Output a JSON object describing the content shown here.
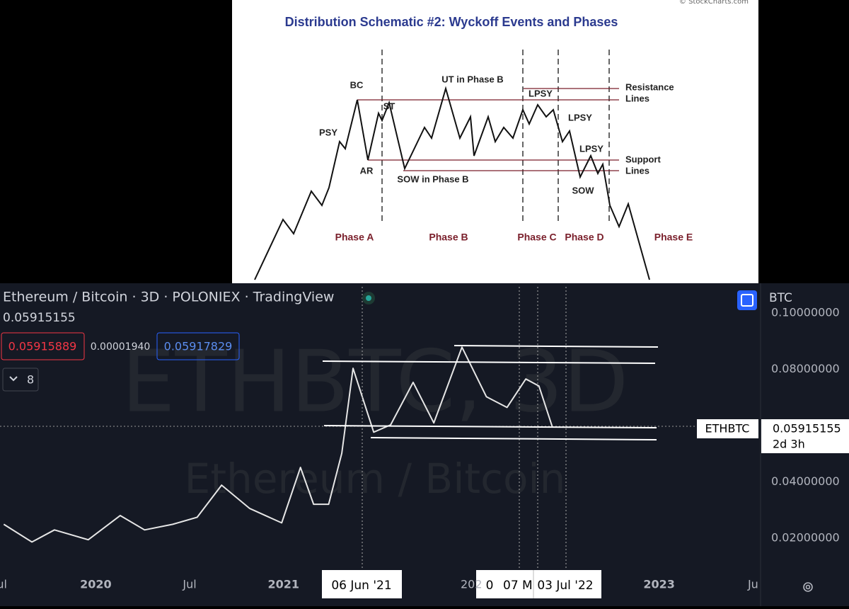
{
  "diagram": {
    "title": "Distribution Schematic #2: Wyckoff Events and Phases",
    "credit": "© StockCharts.com",
    "events": [
      "BC",
      "PSY",
      "ST",
      "AR",
      "UT in Phase B",
      "SOW in Phase B",
      "LPSY",
      "LPSY",
      "LPSY",
      "SOW"
    ],
    "lines": [
      "Resistance",
      "Lines",
      "Support",
      "Lines"
    ],
    "phases": [
      "Phase A",
      "Phase B",
      "Phase C",
      "Phase D",
      "Phase E"
    ]
  },
  "tradingview": {
    "header": "Ethereum / Bitcoin · 3D · POLONIEX · TradingView",
    "price": "0.05915155",
    "bid": "0.05915889",
    "spread": "0.00001940",
    "ask": "0.05917829",
    "indicators": "8",
    "currency": "BTC",
    "watermark": "ETHBTC, 3D",
    "watermark_name": "Ethereum / Bitcoin",
    "price_tag_symbol": "ETHBTC",
    "price_tag_value": "0.05915155",
    "price_tag_countdown": "2d 3h",
    "crosshair_dates": [
      "06 Jun '21",
      "0",
      "07 M",
      "03 Jul '22"
    ]
  },
  "chart_data": {
    "type": "line",
    "x": [
      2019.51,
      2019.66,
      2019.78,
      2019.96,
      2020.13,
      2020.26,
      2020.41,
      2020.54,
      2020.67,
      2020.82,
      2020.99,
      2021.09,
      2021.16,
      2021.24,
      2021.31,
      2021.37,
      2021.48,
      2021.57,
      2021.69,
      2021.8,
      2021.95,
      2022.08,
      2022.19,
      2022.29,
      2022.36,
      2022.43
    ],
    "series": [
      {
        "name": "ETHBTC",
        "color": "#e6e6e6",
        "values": [
          0.025,
          0.0187,
          0.023,
          0.0195,
          0.0281,
          0.023,
          0.025,
          0.0275,
          0.0389,
          0.0306,
          0.0255,
          0.0452,
          0.0321,
          0.0321,
          0.0502,
          0.0804,
          0.0577,
          0.0603,
          0.0754,
          0.061,
          0.0879,
          0.0703,
          0.0665,
          0.0766,
          0.0741,
          0.0598
        ]
      }
    ],
    "xlim": [
      2019.49,
      2023.54
    ],
    "xticks": [
      {
        "value": 2019.5,
        "label": "ul"
      },
      2020,
      {
        "value": 2020.5,
        "label": "Jul"
      },
      2021,
      {
        "value": 2022,
        "label": "202"
      },
      2023,
      {
        "value": 2023.5,
        "label": "Ju"
      }
    ],
    "ylim": [
      0.01,
      0.1106
    ],
    "yticks": [
      {
        "value": 0.1,
        "label": "0.10000000"
      },
      {
        "value": 0.08,
        "label": "0.08000000"
      },
      {
        "value": 0.04,
        "label": "0.04000000"
      },
      {
        "value": 0.02,
        "label": "0.02000000"
      }
    ]
  }
}
